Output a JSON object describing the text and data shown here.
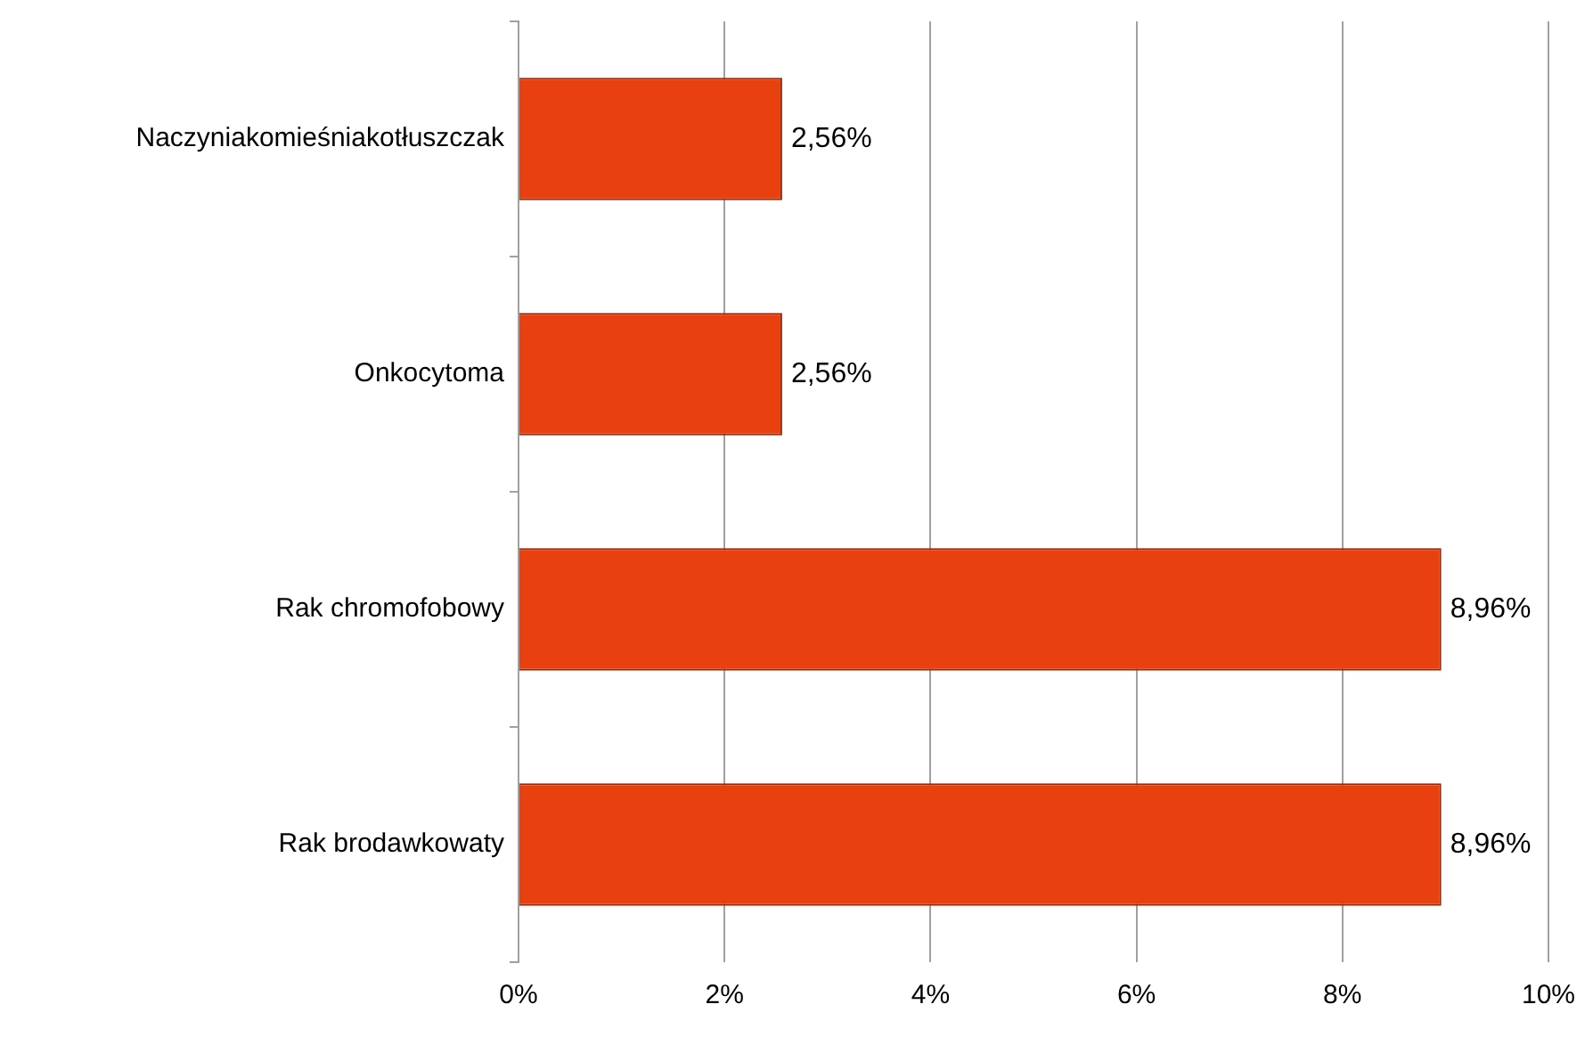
{
  "chart_data": {
    "type": "bar",
    "orientation": "horizontal",
    "categories": [
      "Naczyniakomieśniakotłuszczak",
      "Onkocytoma",
      "Rak chromofobowy",
      "Rak brodawkowaty"
    ],
    "values": [
      2.56,
      2.56,
      8.96,
      8.96
    ],
    "value_labels": [
      "2,56%",
      "2,56%",
      "8,96%",
      "8,96%"
    ],
    "color": "#e8400e",
    "xlim": [
      0,
      10
    ],
    "xticks": [
      {
        "value": 0,
        "label": "0%"
      },
      {
        "value": 2,
        "label": "2%"
      },
      {
        "value": 4,
        "label": "4%"
      },
      {
        "value": 6,
        "label": "6%"
      },
      {
        "value": 8,
        "label": "8%"
      },
      {
        "value": 10,
        "label": "10%"
      }
    ],
    "grid": "x",
    "legend": false
  }
}
